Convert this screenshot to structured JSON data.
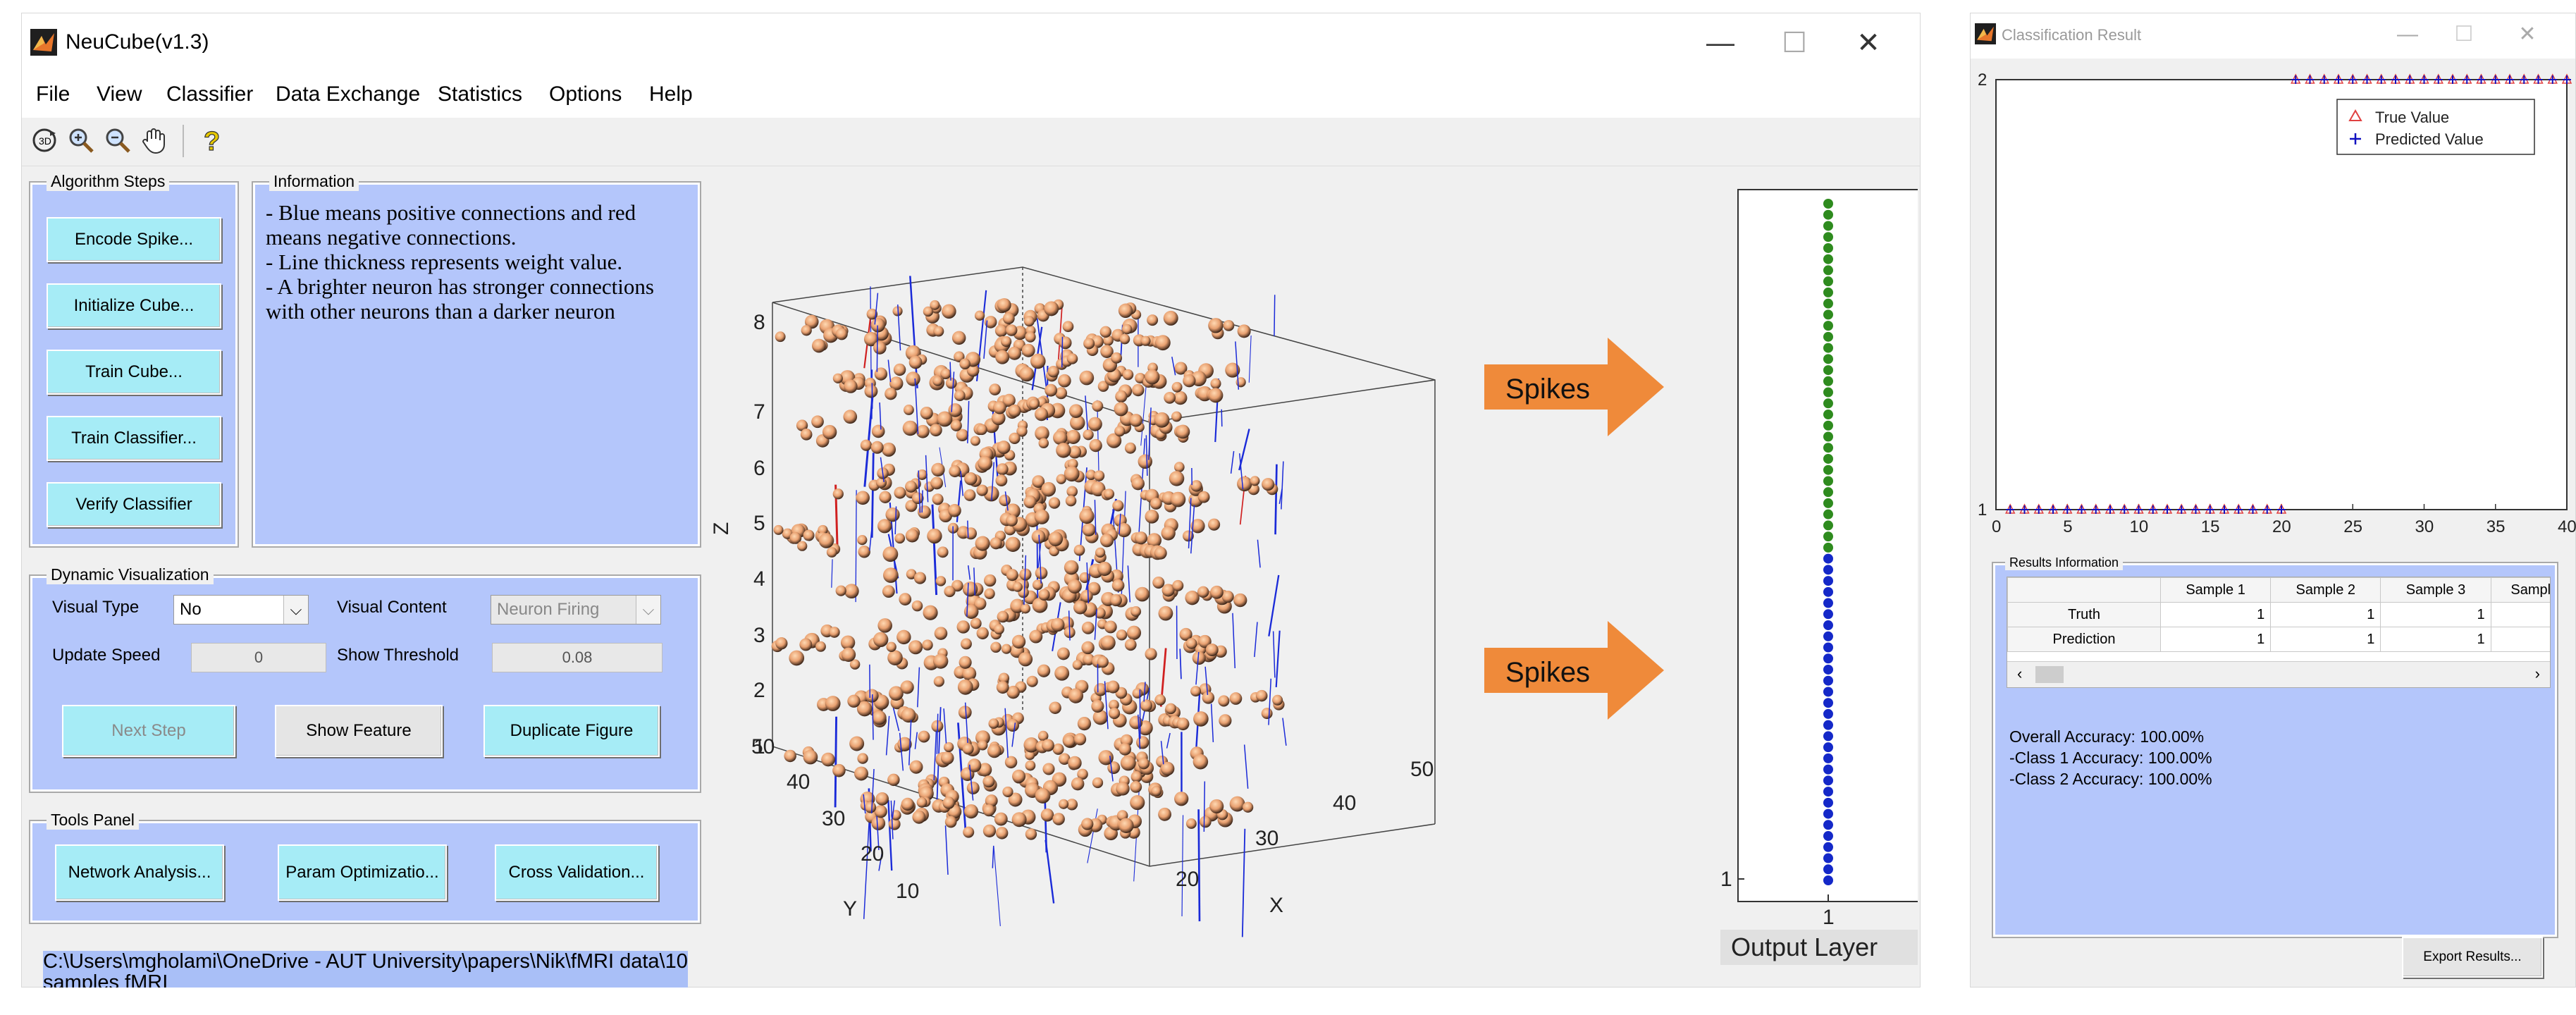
{
  "main_window": {
    "title": "NeuCube(v1.3)",
    "controls": {
      "minimize": "—",
      "maximize": "☐",
      "close": "✕"
    }
  },
  "menu": [
    "File",
    "View",
    "Classifier",
    "Data Exchange",
    "Statistics",
    "Options",
    "Help"
  ],
  "toolbar": {
    "icons": [
      "rotate-3d-icon",
      "zoom-in-icon",
      "zoom-out-icon",
      "pan-hand-icon",
      "help-icon"
    ]
  },
  "algorithm_steps": {
    "title": "Algorithm Steps",
    "buttons": [
      "Encode Spike...",
      "Initialize Cube...",
      "Train Cube...",
      "Train Classifier...",
      "Verify Classifier"
    ]
  },
  "information": {
    "title": "Information",
    "text": "- Blue means positive connections and red means negative connections.\n- Line thickness represents weight value.\n- A brighter neuron has stronger connections with other neurons than a darker neuron"
  },
  "dynamic_visualization": {
    "title": "Dynamic Visualization",
    "visual_type_label": "Visual Type",
    "visual_type_value": "No",
    "visual_content_label": "Visual Content",
    "visual_content_value": "Neuron Firing",
    "update_speed_label": "Update Speed",
    "update_speed_value": "0",
    "show_threshold_label": "Show Threshold",
    "show_threshold_value": "0.08",
    "next_step": "Next Step",
    "show_feature": "Show Feature",
    "duplicate_figure": "Duplicate Figure"
  },
  "tools_panel": {
    "title": "Tools Panel",
    "buttons": [
      "Network Analysis...",
      "Param Optimizatio...",
      "Cross Validation..."
    ]
  },
  "status_path": "C:\\Users\\mgholami\\OneDrive - AUT University\\papers\\Nik\\fMRI data\\10 samples fMRI",
  "plot3d": {
    "z_label": "Z",
    "y_label": "Y",
    "x_label": "X",
    "z_ticks": [
      "1",
      "2",
      "3",
      "4",
      "5",
      "6",
      "7",
      "8"
    ],
    "y_ticks": [
      "10",
      "20",
      "30",
      "40",
      "50"
    ],
    "x_ticks": [
      "20",
      "30",
      "40",
      "50"
    ]
  },
  "spikes": {
    "label_1": "Spikes",
    "label_2": "Spikes",
    "color": "#f08a3c"
  },
  "output_layer": {
    "label": "Output Layer",
    "x_tick": "1",
    "y_tick": "1",
    "green_dots": 32,
    "blue_dots": 30
  },
  "classification_window": {
    "title": "Classification Result",
    "controls": {
      "minimize": "—",
      "maximize": "☐",
      "close": "✕"
    },
    "chart_data": {
      "type": "scatter",
      "x_ticks": [
        "0",
        "5",
        "10",
        "15",
        "20",
        "25",
        "30",
        "35",
        "40"
      ],
      "y_ticks": [
        "1",
        "2"
      ],
      "xlim": [
        0,
        40
      ],
      "ylim": [
        1,
        2
      ],
      "series": [
        {
          "name": "True Value",
          "marker": "triangle",
          "color": "#e04040",
          "x": [
            1,
            2,
            3,
            4,
            5,
            6,
            7,
            8,
            9,
            10,
            11,
            12,
            13,
            14,
            15,
            16,
            17,
            18,
            19,
            20,
            21,
            22,
            23,
            24,
            25,
            26,
            27,
            28,
            29,
            30,
            31,
            32,
            33,
            34,
            35,
            36,
            37,
            38,
            39,
            40
          ],
          "y": [
            1,
            1,
            1,
            1,
            1,
            1,
            1,
            1,
            1,
            1,
            1,
            1,
            1,
            1,
            1,
            1,
            1,
            1,
            1,
            1,
            2,
            2,
            2,
            2,
            2,
            2,
            2,
            2,
            2,
            2,
            2,
            2,
            2,
            2,
            2,
            2,
            2,
            2,
            2,
            2
          ]
        },
        {
          "name": "Predicted Value",
          "marker": "plus",
          "color": "#1010c0",
          "x": [
            1,
            2,
            3,
            4,
            5,
            6,
            7,
            8,
            9,
            10,
            11,
            12,
            13,
            14,
            15,
            16,
            17,
            18,
            19,
            20,
            21,
            22,
            23,
            24,
            25,
            26,
            27,
            28,
            29,
            30,
            31,
            32,
            33,
            34,
            35,
            36,
            37,
            38,
            39,
            40
          ],
          "y": [
            1,
            1,
            1,
            1,
            1,
            1,
            1,
            1,
            1,
            1,
            1,
            1,
            1,
            1,
            1,
            1,
            1,
            1,
            1,
            1,
            2,
            2,
            2,
            2,
            2,
            2,
            2,
            2,
            2,
            2,
            2,
            2,
            2,
            2,
            2,
            2,
            2,
            2,
            2,
            2
          ]
        }
      ],
      "legend": "top-right"
    },
    "results_title": "Results Information",
    "table": {
      "headers": [
        "",
        "Sample 1",
        "Sample 2",
        "Sample 3",
        "Sampl"
      ],
      "rows": [
        {
          "label": "Truth",
          "values": [
            "1",
            "1",
            "1",
            ""
          ]
        },
        {
          "label": "Prediction",
          "values": [
            "1",
            "1",
            "1",
            ""
          ]
        }
      ]
    },
    "overall_accuracy": "Overall Accuracy: 100.00%",
    "class1_accuracy": "-Class 1 Accuracy: 100.00%",
    "class2_accuracy": "-Class 2 Accuracy: 100.00%",
    "export_button": "Export Results..."
  }
}
